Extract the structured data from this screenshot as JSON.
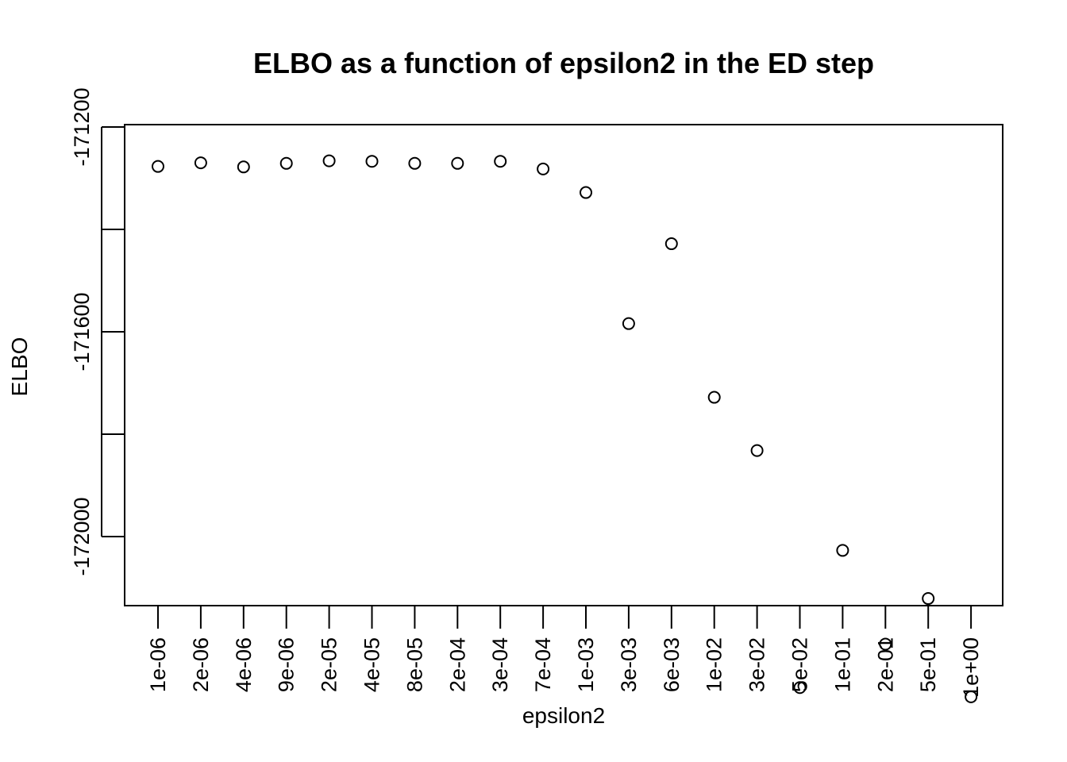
{
  "chart_data": {
    "type": "scatter",
    "title": "ELBO as a function of epsilon2 in the ED step",
    "xlabel": "epsilon2",
    "ylabel": "ELBO",
    "categories": [
      "1e-06",
      "2e-06",
      "4e-06",
      "9e-06",
      "2e-05",
      "4e-05",
      "8e-05",
      "2e-04",
      "3e-04",
      "7e-04",
      "1e-03",
      "3e-03",
      "6e-03",
      "1e-02",
      "3e-02",
      "5e-02",
      "1e-01",
      "2e-01",
      "5e-01",
      "1e+00"
    ],
    "values": [
      -171277,
      -171270,
      -171278,
      -171271,
      -171266,
      -171267,
      -171271,
      -171271,
      -171267,
      -171282,
      -171328,
      -171584,
      -171428,
      -171728,
      -171832,
      -172295,
      -172027,
      -172210,
      -172121,
      -172313
    ],
    "y_ticks": [
      -171200,
      -171400,
      -171600,
      -171800,
      -172000
    ],
    "y_tick_labels": [
      "-171200",
      "",
      "-171600",
      "",
      "-172000"
    ],
    "ylim": [
      -172340,
      -171194
    ],
    "grid": false,
    "legend": "none",
    "marker": "open-circle"
  }
}
